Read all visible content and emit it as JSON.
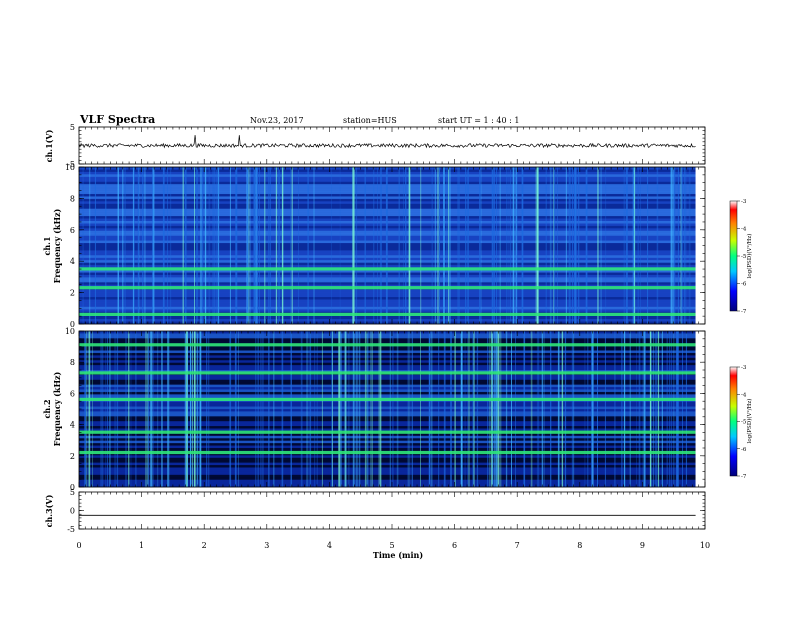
{
  "header": {
    "title": "VLF Spectra",
    "date": "Nov.23, 2017",
    "station": "station=HUS",
    "start": "start  UT =   1 : 40 : 1"
  },
  "chart_data": [
    {
      "type": "line",
      "panel": "ch1-waveform",
      "ylabel": "ch.1(V)",
      "ylim": [
        -5,
        5
      ],
      "y_ticks": [
        "5",
        "-5"
      ],
      "baseline": 0
    },
    {
      "type": "heatmap",
      "panel": "ch1-spectrogram",
      "ylabel_line1": "ch.1",
      "ylabel_line2": "Frequency (kHz)",
      "ylim": [
        0,
        10
      ],
      "y_ticks": [
        "0",
        "2",
        "4",
        "6",
        "8",
        "10"
      ],
      "strong_lines_khz": [
        2.3,
        3.5,
        0.6
      ],
      "colorbar": {
        "label": "log(PSD)(V²/Hz)",
        "range": [
          -7,
          -3
        ],
        "ticks": [
          "-3",
          "-4",
          "-5",
          "-6",
          "-7"
        ]
      }
    },
    {
      "type": "heatmap",
      "panel": "ch2-spectrogram",
      "ylabel_line1": "ch.2",
      "ylabel_line2": "Frequency (kHz)",
      "ylim": [
        0,
        10
      ],
      "y_ticks": [
        "0",
        "2",
        "4",
        "6",
        "8",
        "10"
      ],
      "strong_lines_khz": [
        2.2,
        3.5,
        5.6,
        7.3,
        9.1
      ],
      "colorbar": {
        "label": "log(PSD)(V²/Hz)",
        "range": [
          -7,
          -3
        ],
        "ticks": [
          "-3",
          "-4",
          "-5",
          "-6",
          "-7"
        ]
      }
    },
    {
      "type": "line",
      "panel": "ch3-waveform",
      "ylabel": "ch.3(V)",
      "ylim": [
        -5,
        5
      ],
      "y_ticks": [
        "5",
        "0",
        "-5"
      ],
      "baseline": -1.3
    }
  ],
  "x_axis": {
    "label": "Time (min)",
    "range": [
      0,
      10
    ],
    "ticks": [
      "0",
      "1",
      "2",
      "3",
      "4",
      "5",
      "6",
      "7",
      "8",
      "9",
      "10"
    ],
    "data_end_min": 9.85
  }
}
